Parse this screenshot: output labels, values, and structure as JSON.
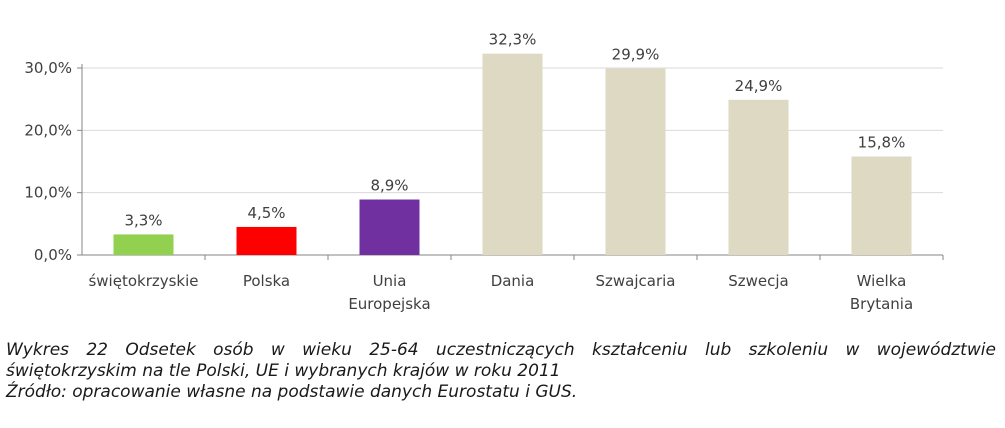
{
  "chart_data": {
    "type": "bar",
    "categories": [
      "świętokrzyskie",
      "Polska",
      "Unia Europejska",
      "Dania",
      "Szwajcaria",
      "Szwecja",
      "Wielka Brytania"
    ],
    "category_lines": [
      [
        "świętokrzyskie"
      ],
      [
        "Polska"
      ],
      [
        "Unia",
        "Europejska"
      ],
      [
        "Dania"
      ],
      [
        "Szwajcaria"
      ],
      [
        "Szwecja"
      ],
      [
        "Wielka",
        "Brytania"
      ]
    ],
    "values": [
      3.3,
      4.5,
      8.9,
      32.3,
      29.9,
      24.9,
      15.8
    ],
    "data_labels": [
      "3,3%",
      "4,5%",
      "8,9%",
      "32,3%",
      "29,9%",
      "24,9%",
      "15,8%"
    ],
    "colors": [
      "#92d050",
      "#ff0000",
      "#7030a0",
      "#ddd9c3",
      "#ddd9c3",
      "#ddd9c3",
      "#ddd9c3"
    ],
    "ylim": [
      0,
      30
    ],
    "yticks": [
      0,
      10,
      20,
      30
    ],
    "ytick_labels": [
      "0,0%",
      "10,0%",
      "20,0%",
      "30,0%"
    ],
    "grid": true,
    "gridline_color": "#d9d9d9",
    "axis_color": "#868686",
    "title": "",
    "xlabel": "",
    "ylabel": ""
  },
  "caption": {
    "line1_words": [
      "Wykres",
      "22",
      "Odsetek",
      "osób",
      "w",
      "wieku",
      "25-64",
      "uczestniczących",
      "kształceniu",
      "lub",
      "szkoleniu",
      "w",
      "województwie"
    ],
    "line2": "świętokrzyskim na tle Polski, UE i wybranych krajów w roku 2011",
    "source": "Źródło: opracowanie własne na podstawie danych Eurostatu i GUS."
  }
}
